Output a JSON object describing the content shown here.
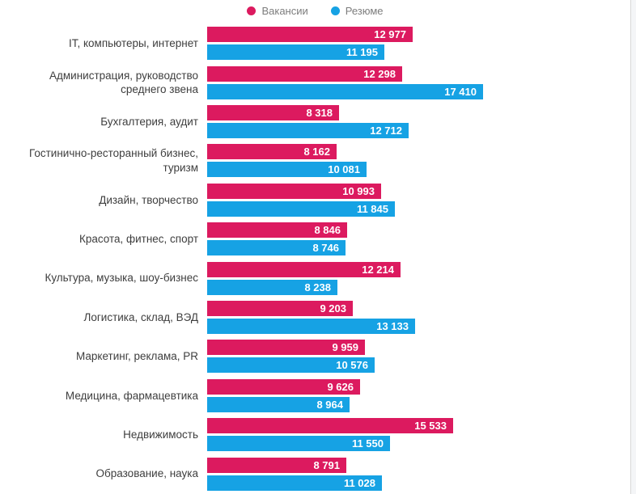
{
  "page": {
    "background": "#ffffff"
  },
  "legend": {
    "position": "top-center",
    "items": [
      {
        "label": "Вакансии",
        "color": "#dc1a5f"
      },
      {
        "label": "Резюме",
        "color": "#16a2e4"
      }
    ]
  },
  "chart_data": {
    "type": "bar",
    "orientation": "horizontal",
    "title": "",
    "xlabel": "",
    "ylabel": "",
    "grid": false,
    "legend_position": "top-center",
    "value_labels": "inside-end, white, space thousands separator",
    "xlim": [
      0,
      17410
    ],
    "categories": [
      "IT, компьютеры, интернет",
      "Администрация, руководство\nсреднего звена",
      "Бухгалтерия, аудит",
      "Гостинично-ресторанный бизнес,\nтуризм",
      "Дизайн, творчество",
      "Красота, фитнес, спорт",
      "Культура, музыка, шоу-бизнес",
      "Логистика, склад, ВЭД",
      "Маркетинг, реклама, PR",
      "Медицина, фармацевтика",
      "Недвижимость",
      "Образование, наука"
    ],
    "series": [
      {
        "name": "Вакансии",
        "key": "vacancies",
        "color": "#dc1a5f",
        "values": [
          12977,
          12298,
          8318,
          8162,
          10993,
          8846,
          12214,
          9203,
          9959,
          9626,
          15533,
          8791
        ]
      },
      {
        "name": "Резюме",
        "key": "resumes",
        "color": "#16a2e4",
        "values": [
          11195,
          17410,
          12712,
          10081,
          11845,
          8746,
          8238,
          13133,
          10576,
          8964,
          11550,
          11028
        ]
      }
    ]
  }
}
